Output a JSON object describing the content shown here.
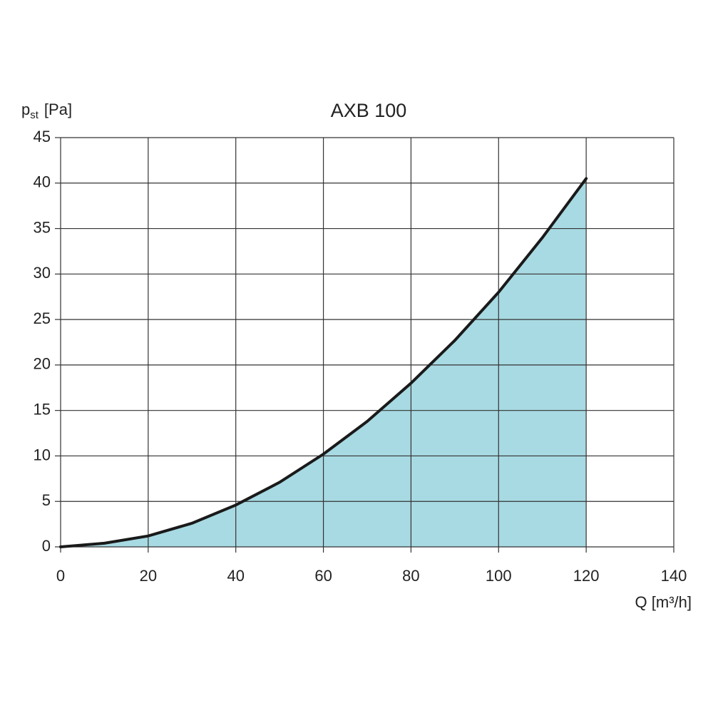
{
  "chart_data": {
    "type": "area",
    "title": "AXB 100",
    "y_label": {
      "symbol": "p",
      "subscript": "st",
      "unit": "[Pa]"
    },
    "x_label": "Q [m³/h]",
    "x": [
      0,
      10,
      20,
      30,
      40,
      50,
      60,
      70,
      80,
      90,
      100,
      110,
      120
    ],
    "series": [
      {
        "name": "AXB 100",
        "color": "#a8dae3",
        "line_color": "#1a1a1a",
        "values": [
          0,
          0.4,
          1.2,
          2.6,
          4.6,
          7.1,
          10.2,
          13.8,
          18,
          22.7,
          28,
          34,
          40.5
        ]
      }
    ],
    "xlim": [
      0,
      140
    ],
    "xticks": [
      0,
      20,
      40,
      60,
      80,
      100,
      120,
      140
    ],
    "ylim": [
      0,
      45
    ],
    "yticks": [
      0,
      5,
      10,
      15,
      20,
      25,
      30,
      35,
      40,
      45
    ],
    "grid": true
  }
}
